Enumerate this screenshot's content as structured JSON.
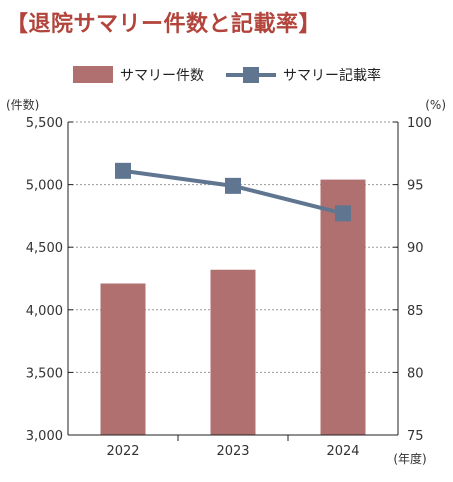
{
  "title": "【退院サマリー件数と記載率】",
  "chart_data": {
    "type": "bar",
    "categories": [
      "2022",
      "2023",
      "2024"
    ],
    "series": [
      {
        "name": "サマリー件数",
        "type": "bar",
        "axis": "left",
        "values": [
          4210,
          4320,
          5040
        ]
      },
      {
        "name": "サマリー記載率",
        "type": "line",
        "axis": "right",
        "values": [
          96.1,
          94.9,
          92.7
        ]
      }
    ],
    "y_left": {
      "unit": "(件数)",
      "ylim": [
        3000,
        5500
      ],
      "ticks": [
        "3,000",
        "3,500",
        "4,000",
        "4,500",
        "5,000",
        "5,500"
      ]
    },
    "y_right": {
      "unit": "(%)",
      "ylim": [
        75,
        100
      ],
      "ticks": [
        "75",
        "80",
        "85",
        "90",
        "95",
        "100"
      ]
    },
    "xlabel": "(年度)",
    "grid": true,
    "legend_position": "top",
    "colors": {
      "bar": "#b07070",
      "line": "#5f7590",
      "title": "#b2443c"
    }
  }
}
